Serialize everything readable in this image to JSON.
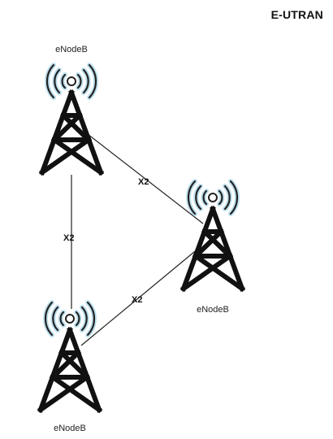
{
  "diagram": {
    "title": "E-UTRAN",
    "nodes": [
      {
        "id": "top",
        "label": "eNodeB"
      },
      {
        "id": "right",
        "label": "eNodeB"
      },
      {
        "id": "bottom",
        "label": "eNodeB"
      }
    ],
    "links": [
      {
        "from": "top",
        "to": "bottom",
        "label": "X2"
      },
      {
        "from": "top",
        "to": "right",
        "label": "X2"
      },
      {
        "from": "bottom",
        "to": "right",
        "label": "X2"
      }
    ],
    "colors": {
      "tower": "#111111",
      "waves": "#222222",
      "wave_glow": "#a9d6e8",
      "link_line": "#222222"
    },
    "icons": {
      "node": "radio-tower-icon"
    }
  }
}
